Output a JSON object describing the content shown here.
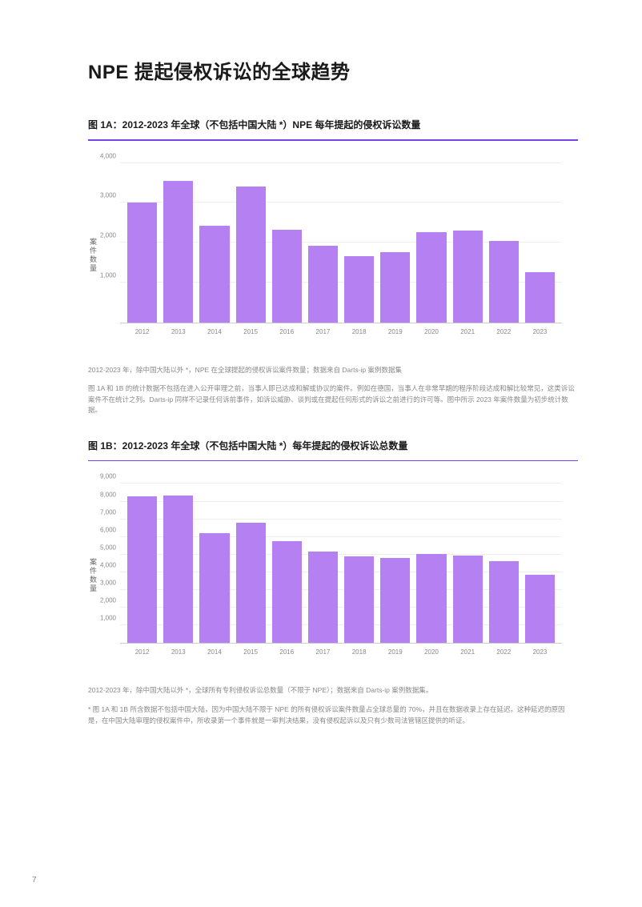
{
  "main_title": "NPE 提起侵权诉讼的全球趋势",
  "page_number": "7",
  "chart_a": {
    "type": "bar",
    "title": "图 1A：2012-2023 年全球（不包括中国大陆 *）NPE 每年提起的侵权诉讼数量",
    "ylabel": "案件数量",
    "categories": [
      "2012",
      "2013",
      "2014",
      "2015",
      "2016",
      "2017",
      "2018",
      "2019",
      "2020",
      "2021",
      "2022",
      "2023"
    ],
    "values": [
      3000,
      3550,
      2420,
      3400,
      2320,
      1920,
      1650,
      1760,
      2260,
      2300,
      2050,
      1260
    ],
    "ylim": [
      0,
      4000
    ],
    "ytick_step": 1000,
    "yticks": [
      "1,000",
      "2,000",
      "3,000",
      "4,000"
    ],
    "bar_color": "#b580f2",
    "grid_color": "#eeeeee",
    "axis_color": "#cccccc",
    "title_accent": "#7b3ff2",
    "caption": "2012-2023 年，除中国大陆以外 *，NPE 在全球提起的侵权诉讼案件数量；数据来自 Darts-ip 案例数据集",
    "footnote": "图 1A 和 1B 的统计数据不包括在进入公开审理之前，当事人即已达成和解或协议的案件。例如在德国，当事人在非常早期的程序阶段达成和解比较常见，这类诉讼案件不在统计之列。Darts-ip 同样不记录任何诉前事件，如诉讼威胁、谈判或在提起任何形式的诉讼之前进行的许可等。图中所示 2023 年案件数量为初步统计数据。"
  },
  "chart_b": {
    "type": "bar",
    "title": "图 1B：2012-2023 年全球（不包括中国大陆 *）每年提起的侵权诉讼总数量",
    "ylabel": "案件数量",
    "categories": [
      "2012",
      "2013",
      "2014",
      "2015",
      "2016",
      "2017",
      "2018",
      "2019",
      "2020",
      "2021",
      "2022",
      "2023"
    ],
    "values": [
      8280,
      8320,
      6200,
      6800,
      5760,
      5160,
      4880,
      4800,
      5020,
      4960,
      4640,
      3860
    ],
    "ylim": [
      0,
      9000
    ],
    "ytick_step": 1000,
    "yticks": [
      "1,000",
      "2,000",
      "3,000",
      "4,000",
      "5,000",
      "6,000",
      "7,000",
      "8,000",
      "9,000"
    ],
    "bar_color": "#b580f2",
    "grid_color": "#eeeeee",
    "axis_color": "#cccccc",
    "title_accent": "#7b3ff2",
    "caption": "2012-2023 年，除中国大陆以外 *，全球所有专利侵权诉讼总数量（不限于 NPE）；数据来自 Darts-ip 案例数据集。",
    "footnote": "* 图 1A 和 1B 所含数据不包括中国大陆，因为中国大陆不限于 NPE 的所有侵权诉讼案件数量占全球总量的 70%，并且在数据收录上存在延迟。这种延迟的原因是，在中国大陆审理的侵权案件中，所收录第一个事件就是一审判决结果，没有侵权起诉以及只有少数司法管辖区提供的听证。"
  }
}
